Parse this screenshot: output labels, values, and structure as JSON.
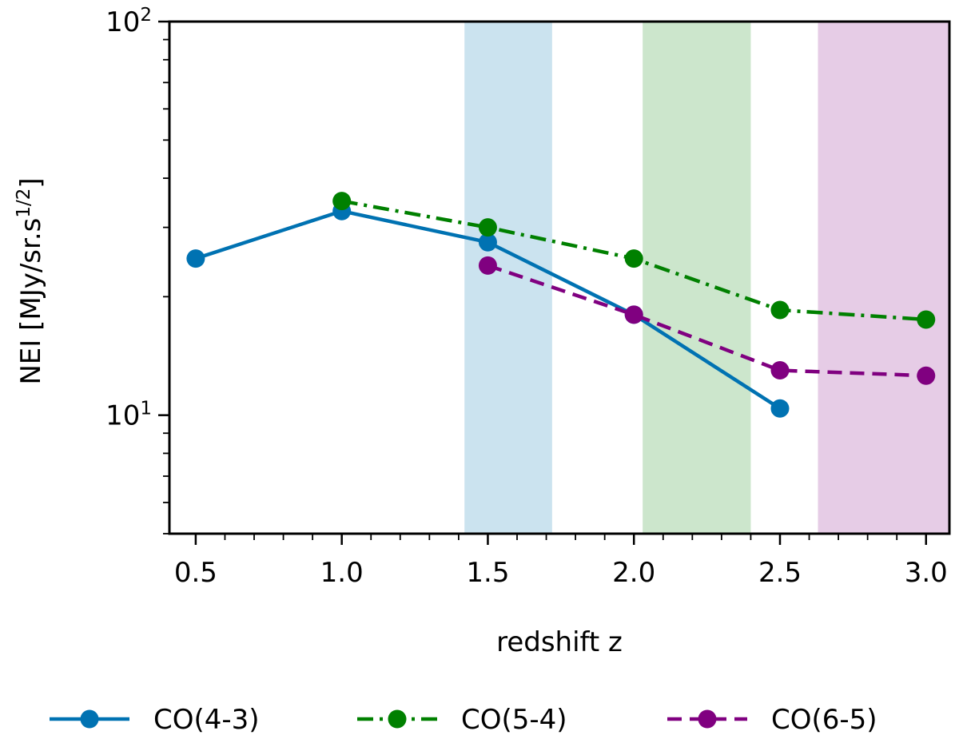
{
  "chart_data": {
    "type": "line",
    "title": "",
    "xlabel": "redshift z",
    "ylabel_main": "NEI [MJy/sr.s",
    "ylabel_sup": "1/2",
    "ylabel_close": "]",
    "xlim": [
      0.41,
      3.08
    ],
    "ylim": [
      5,
      100
    ],
    "yscale": "log",
    "x_ticks": [
      0.5,
      1.0,
      1.5,
      2.0,
      2.5,
      3.0
    ],
    "x_tick_labels": [
      "0.5",
      "1.0",
      "1.5",
      "2.0",
      "2.5",
      "3.0"
    ],
    "y_major_ticks": [
      {
        "value": 10,
        "base": "10",
        "exp": "1"
      },
      {
        "value": 100,
        "base": "10",
        "exp": "2"
      }
    ],
    "bands": [
      {
        "x0": 1.42,
        "x1": 1.72,
        "color": "#cbe3ef"
      },
      {
        "x0": 2.03,
        "x1": 2.4,
        "color": "#cce6cc"
      },
      {
        "x0": 2.63,
        "x1": 3.08,
        "color": "#e6cce6"
      }
    ],
    "series": [
      {
        "name": "CO(4-3)",
        "color": "#0072b2",
        "dash": "solid",
        "x": [
          0.5,
          1.0,
          1.5,
          2.0,
          2.5
        ],
        "values": [
          25.0,
          33.0,
          27.5,
          18.0,
          10.4
        ]
      },
      {
        "name": "CO(5-4)",
        "color": "#008000",
        "dash": "dashdot",
        "x": [
          1.0,
          1.5,
          2.0,
          2.5,
          3.0
        ],
        "values": [
          35.0,
          30.0,
          25.0,
          18.5,
          17.5
        ]
      },
      {
        "name": "CO(6-5)",
        "color": "#800080",
        "dash": "dashed",
        "x": [
          1.5,
          2.0,
          2.5,
          3.0
        ],
        "values": [
          24.0,
          18.0,
          13.0,
          12.6
        ]
      }
    ]
  }
}
